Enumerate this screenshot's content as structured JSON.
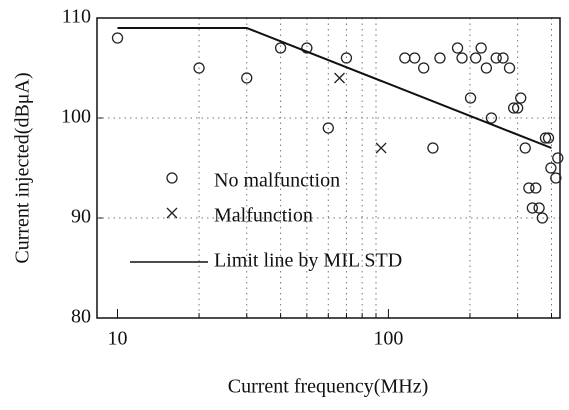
{
  "chart_data": {
    "type": "scatter",
    "x_label": "Current frequency(MHz)",
    "y_label": "Current injected(dBμA)",
    "log_x": true,
    "xlim": [
      8.4,
      430
    ],
    "ylim": [
      80,
      110
    ],
    "xticks": [
      10,
      100
    ],
    "yticks": [
      80,
      90,
      100,
      110
    ],
    "x_minor_ticks": [
      20,
      30,
      40,
      50,
      60,
      70,
      80,
      90,
      200,
      300,
      400
    ],
    "grid": true,
    "legend": "center left",
    "series": [
      {
        "name": "No malfunction",
        "marker": "circle",
        "color": "#222222",
        "x": [
          10,
          20,
          30,
          40,
          50,
          70,
          60,
          115,
          125,
          135,
          146,
          155,
          180,
          187,
          210,
          201,
          220,
          230,
          240,
          250,
          265,
          280,
          290,
          300,
          308,
          320,
          330,
          340,
          350,
          360,
          370,
          380,
          390,
          398,
          415,
          422
        ],
        "values": [
          108,
          105,
          104,
          107,
          107,
          106,
          99,
          106,
          106,
          105,
          97,
          106,
          107,
          106,
          106,
          102,
          107,
          105,
          100,
          106,
          106,
          105,
          101,
          101,
          102,
          97,
          93,
          91,
          93,
          91,
          90,
          98,
          98,
          95,
          94,
          96
        ]
      },
      {
        "name": "Malfunction",
        "marker": "cross",
        "color": "#222222",
        "x": [
          66,
          94
        ],
        "values": [
          104,
          97
        ]
      },
      {
        "name": "Limit line by MIL STD",
        "marker": "line",
        "color": "#111111",
        "x": [
          10,
          30,
          400
        ],
        "values": [
          109,
          109,
          97
        ]
      }
    ]
  }
}
